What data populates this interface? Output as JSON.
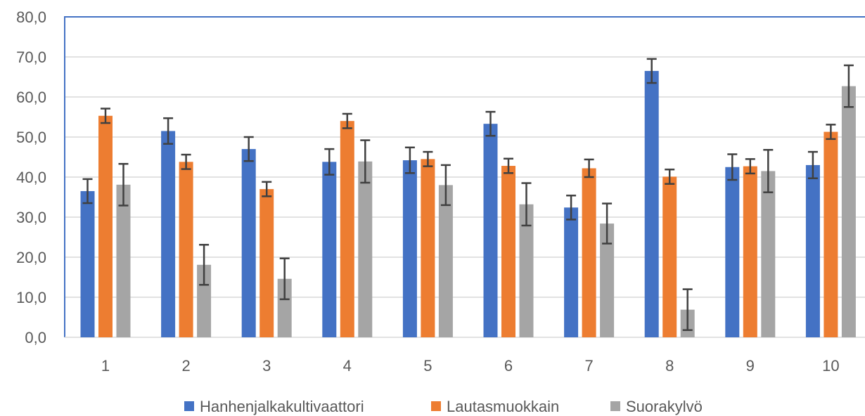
{
  "chart_data": {
    "type": "bar",
    "categories": [
      "1",
      "2",
      "3",
      "4",
      "5",
      "6",
      "7",
      "8",
      "9",
      "10"
    ],
    "series": [
      {
        "name": "Hanhenjalkakultivaattori",
        "color": "#4472C4",
        "values": [
          36.5,
          51.5,
          47.0,
          43.8,
          44.2,
          53.3,
          32.4,
          66.5,
          42.5,
          43.0
        ],
        "errors": [
          3.0,
          3.2,
          3.0,
          3.2,
          3.2,
          3.0,
          3.0,
          3.0,
          3.2,
          3.3
        ]
      },
      {
        "name": "Lautasmuokkain",
        "color": "#ED7D31",
        "values": [
          55.3,
          43.8,
          37.0,
          54.0,
          44.5,
          42.8,
          42.2,
          40.1,
          42.7,
          51.3
        ],
        "errors": [
          1.8,
          1.8,
          1.8,
          1.8,
          1.8,
          1.8,
          2.2,
          1.8,
          1.8,
          1.8
        ]
      },
      {
        "name": "Suorakylvö",
        "color": "#A5A5A5",
        "values": [
          38.1,
          18.1,
          14.6,
          43.9,
          38.0,
          33.2,
          28.4,
          6.9,
          41.5,
          62.7
        ],
        "errors": [
          5.2,
          5.0,
          5.1,
          5.3,
          5.0,
          5.3,
          5.0,
          5.1,
          5.3,
          5.2
        ]
      }
    ],
    "yticks": [
      "0,0",
      "10,0",
      "20,0",
      "30,0",
      "40,0",
      "50,0",
      "60,0",
      "70,0",
      "80,0"
    ],
    "ylim": [
      0,
      80
    ],
    "grid": true,
    "legend_position": "bottom",
    "plot_border_color": "#4472C4",
    "gridline_color": "#D9D9D9",
    "error_bar_color": "#404040"
  }
}
